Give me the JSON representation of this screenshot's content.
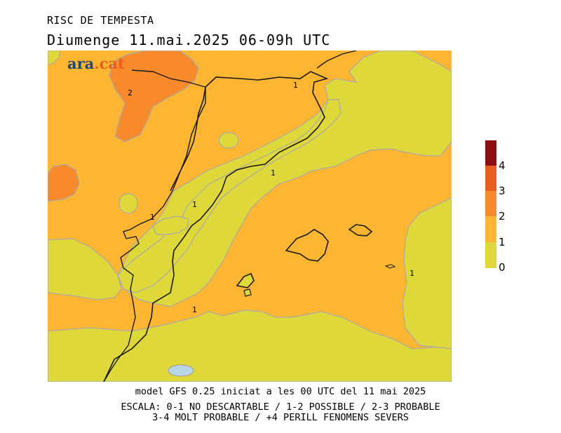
{
  "header": {
    "title": "RISC DE TEMPESTA",
    "subtitle": "Diumenge  11.mai.2025 06-09h UTC"
  },
  "brand": {
    "name": "ara",
    "suffix": ".cat"
  },
  "map": {
    "contour_labels": [
      "2",
      "1",
      "1",
      "1",
      "1",
      "1",
      "1"
    ],
    "colors": {
      "level_0_1": "#dfd83a",
      "level_1_2": "#fdb532",
      "level_2_3": "#f98a2c",
      "level_3_4": "#e95c1f",
      "level_4_plus": "#8c0e10",
      "water": "#b9d5e6",
      "border": "#1a1a1a",
      "contour": "#aaaaaa"
    }
  },
  "legend": {
    "labels": [
      "4",
      "3",
      "2",
      "1",
      "0"
    ],
    "colors": [
      "#8c0e10",
      "#e95c1f",
      "#f98a2c",
      "#fdb532",
      "#dfd83a"
    ]
  },
  "footer": {
    "model_line": "model GFS 0.25 iniciat a les 00 UTC del 11 mai 2025",
    "scale_line1": "ESCALA: 0-1 NO DESCARTABLE / 1-2 POSSIBLE / 2-3 PROBABLE",
    "scale_line2": "3-4 MOLT PROBABLE / +4 PERILL FENOMENS SEVERS"
  }
}
